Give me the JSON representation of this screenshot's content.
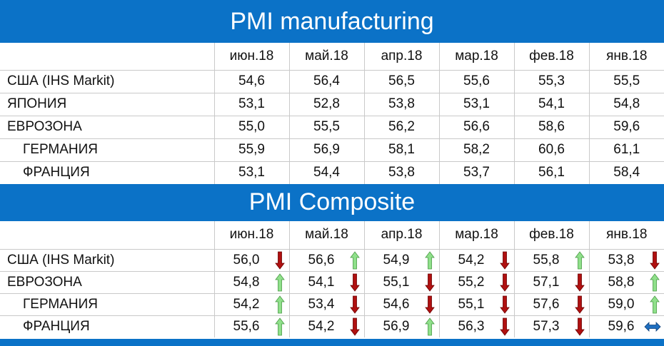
{
  "manufacturing": {
    "title": "PMI manufacturing",
    "months": [
      "июн.18",
      "май.18",
      "апр.18",
      "мар.18",
      "фев.18",
      "янв.18"
    ],
    "rows": [
      {
        "name": "США (IHS Markit)",
        "sub": false,
        "values": [
          "54,6",
          "56,4",
          "56,5",
          "55,6",
          "55,3",
          "55,5"
        ]
      },
      {
        "name": "ЯПОНИЯ",
        "sub": false,
        "values": [
          "53,1",
          "52,8",
          "53,8",
          "53,1",
          "54,1",
          "54,8"
        ]
      },
      {
        "name": "ЕВРОЗОНА",
        "sub": false,
        "values": [
          "55,0",
          "55,5",
          "56,2",
          "56,6",
          "58,6",
          "59,6"
        ]
      },
      {
        "name": "ГЕРМАНИЯ",
        "sub": true,
        "values": [
          "55,9",
          "56,9",
          "58,1",
          "58,2",
          "60,6",
          "61,1"
        ]
      },
      {
        "name": "ФРАНЦИЯ",
        "sub": true,
        "values": [
          "53,1",
          "54,4",
          "53,8",
          "53,7",
          "56,1",
          "58,4"
        ]
      }
    ]
  },
  "composite": {
    "title": "PMI Composite",
    "months": [
      "июн.18",
      "май.18",
      "апр.18",
      "мар.18",
      "фев.18",
      "янв.18"
    ],
    "rows": [
      {
        "name": "США (IHS Markit)",
        "sub": false,
        "values": [
          "56,0",
          "56,6",
          "54,9",
          "54,2",
          "55,8",
          "53,8"
        ],
        "trend": [
          "down",
          "up",
          "up",
          "down",
          "up",
          "down"
        ]
      },
      {
        "name": "ЕВРОЗОНА",
        "sub": false,
        "values": [
          "54,8",
          "54,1",
          "55,1",
          "55,2",
          "57,1",
          "58,8"
        ],
        "trend": [
          "up",
          "down",
          "down",
          "down",
          "down",
          "up"
        ]
      },
      {
        "name": "ГЕРМАНИЯ",
        "sub": true,
        "values": [
          "54,2",
          "53,4",
          "54,6",
          "55,1",
          "57,6",
          "59,0"
        ],
        "trend": [
          "up",
          "down",
          "down",
          "down",
          "down",
          "up"
        ]
      },
      {
        "name": "ФРАНЦИЯ",
        "sub": true,
        "values": [
          "55,6",
          "54,2",
          "56,9",
          "56,3",
          "57,3",
          "59,6"
        ],
        "trend": [
          "up",
          "down",
          "up",
          "down",
          "down",
          "flat"
        ]
      }
    ]
  },
  "colors": {
    "background": "#0b72c7",
    "up_arrow": "#8fe08a",
    "down_arrow": "#b01010",
    "flat_arrow": "#1f6fc0"
  },
  "icons": {
    "up": "arrow-up-icon",
    "down": "arrow-down-icon",
    "flat": "arrow-left-right-icon"
  }
}
